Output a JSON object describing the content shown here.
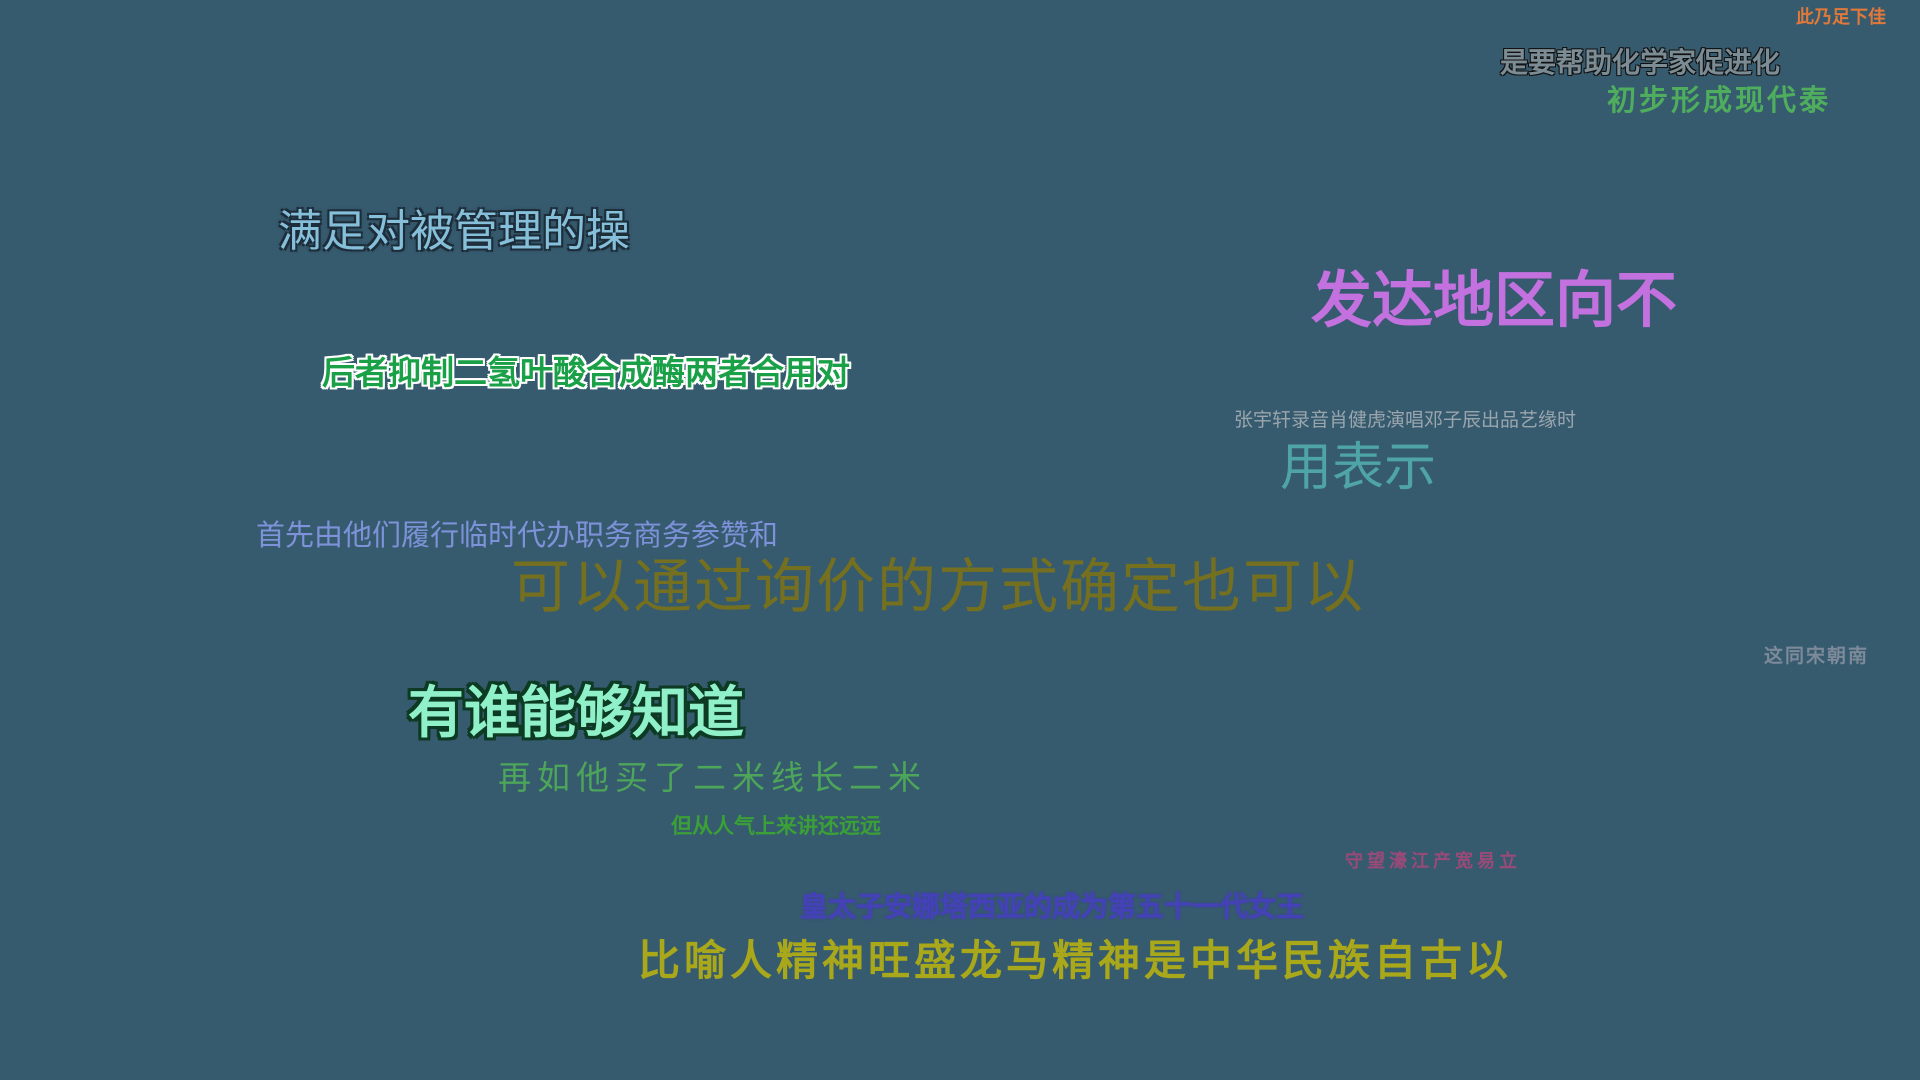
{
  "background_color": "#365a6e",
  "phrases": [
    {
      "text": "此乃足下佳",
      "color": "#e0793a"
    },
    {
      "text": "是要帮助化学家促进化",
      "color": "#7c8c94"
    },
    {
      "text": "初步形成现代泰",
      "color": "#4fae5e"
    },
    {
      "text": "满足对被管理的操",
      "color": "#85bfd9"
    },
    {
      "text": "发达地区向不",
      "color": "#c271df"
    },
    {
      "text": "后者抑制二氢叶酸合成酶两者合用对",
      "color": "#1aa047"
    },
    {
      "text": "张宇轩录音肖健虎演唱邓子辰出品艺缘时",
      "color": "#9aa5ae"
    },
    {
      "text": "用表示",
      "color": "#4fa5a6"
    },
    {
      "text": "首先由他们履行临时代办职务商务参赞和",
      "color": "#7d92d9"
    },
    {
      "text": "可以通过询价的方式确定也可以",
      "color": "#75701f"
    },
    {
      "text": "这同宋朝南",
      "color": "#7c8a9a"
    },
    {
      "text": "有谁能够知道",
      "color": "#8ff0c9"
    },
    {
      "text": "再如他买了二米线长二米",
      "color": "#4da55a"
    },
    {
      "text": "但从人气上来讲还远远",
      "color": "#3aa037"
    },
    {
      "text": "守望濠江产宽易立",
      "color": "#9a4a78"
    },
    {
      "text": "皇太子安娜塔西亚的成为第五十一代女王",
      "color": "#4542b8"
    },
    {
      "text": "比喻人精神旺盛龙马精神是中华民族自古以",
      "color": "#a9a81a"
    }
  ]
}
